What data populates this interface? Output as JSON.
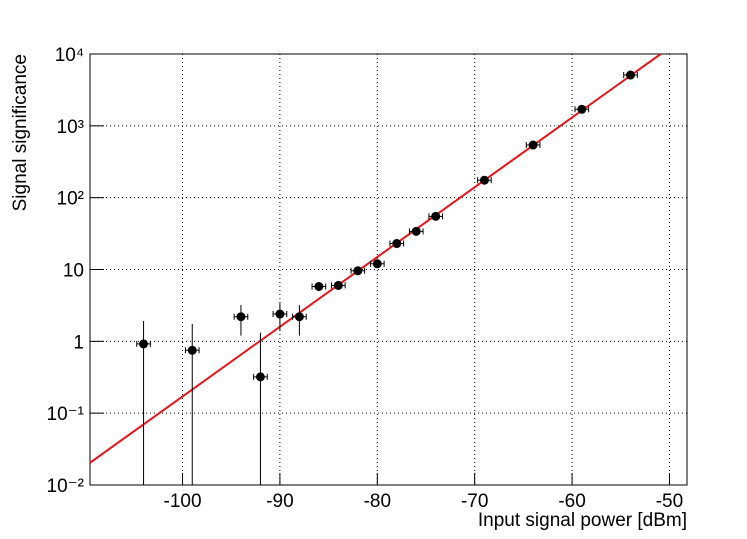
{
  "chart_data": {
    "type": "scatter",
    "x_label": "Input signal power [dBm]",
    "y_label": "Signal significance",
    "xlim": [
      -109.5,
      -48.2
    ],
    "ylim": [
      0.01,
      10000
    ],
    "xticks": [
      -100,
      -90,
      -80,
      -70,
      -60,
      -50
    ],
    "yticks": [
      {
        "value": 0.01,
        "label": "10⁻²"
      },
      {
        "value": 0.1,
        "label": "10⁻¹"
      },
      1,
      10,
      {
        "value": 100,
        "label": "10²"
      },
      {
        "value": 1000,
        "label": "10³"
      },
      {
        "value": 10000,
        "label": "10⁴"
      }
    ],
    "y_log": true,
    "grid": true,
    "color": "#000000",
    "x": [
      -104,
      -99,
      -94,
      -92,
      -90,
      -88,
      -86,
      -84,
      -82,
      -80,
      -78,
      -76,
      -74,
      -69,
      -64,
      -59,
      -54
    ],
    "values": [
      0.92,
      0.75,
      2.2,
      0.32,
      2.4,
      2.2,
      5.8,
      6.0,
      9.6,
      12,
      23,
      34,
      55,
      175,
      540,
      1700,
      5100
    ],
    "x_errors": [
      0.7,
      0.7,
      0.7,
      0.7,
      0.7,
      0.7,
      0.7,
      0.7,
      0.7,
      0.7,
      0.7,
      0.7,
      0.7,
      0.7,
      0.7,
      0.7,
      0.7
    ],
    "errors": [
      1.0,
      1.0,
      1.0,
      1.0,
      1.0,
      1.0,
      0.8,
      0.8,
      0.5,
      0.7,
      1.5,
      2,
      3,
      8,
      25,
      80,
      200
    ],
    "fit": {
      "color": "#e8141a",
      "x": [
        -109.5,
        -50.9
      ],
      "values": [
        0.0204,
        10000
      ]
    }
  }
}
